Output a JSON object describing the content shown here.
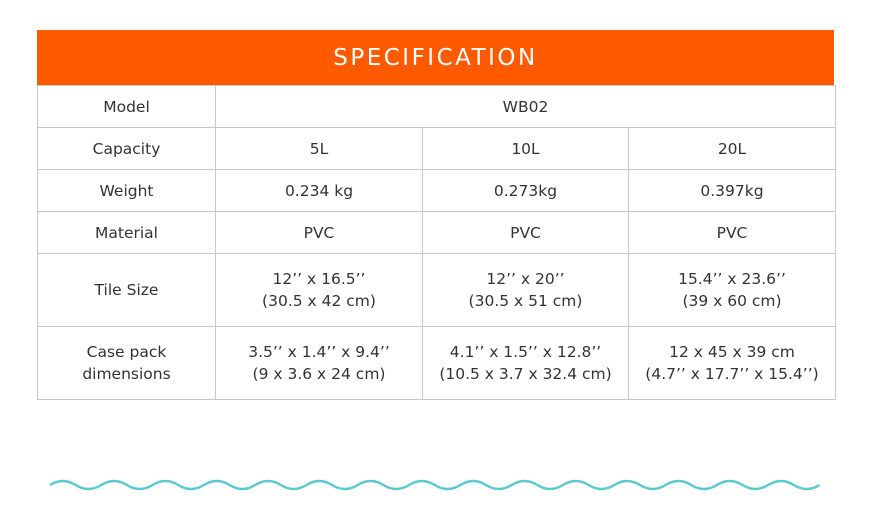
{
  "header": {
    "title": "SPECIFICATION"
  },
  "table": {
    "rows": [
      {
        "label": [
          "Model"
        ],
        "cells": [
          [
            "WB02"
          ]
        ]
      },
      {
        "label": [
          "Capacity"
        ],
        "cells": [
          [
            "5L"
          ],
          [
            "10L"
          ],
          [
            "20L"
          ]
        ]
      },
      {
        "label": [
          "Weight"
        ],
        "cells": [
          [
            "0.234 kg"
          ],
          [
            "0.273kg"
          ],
          [
            "0.397kg"
          ]
        ]
      },
      {
        "label": [
          "Material"
        ],
        "cells": [
          [
            "PVC"
          ],
          [
            "PVC"
          ],
          [
            "PVC"
          ]
        ]
      },
      {
        "label": [
          "Tile Size"
        ],
        "cells": [
          [
            "12’’ x 16.5’’",
            "(30.5 x 42 cm)"
          ],
          [
            "12’’ x 20’’",
            "(30.5 x 51 cm)"
          ],
          [
            "15.4’’ x 23.6’’",
            "(39 x 60 cm)"
          ]
        ]
      },
      {
        "label": [
          "Case pack",
          "dimensions"
        ],
        "cells": [
          [
            "3.5’’ x 1.4’’ x 9.4’’",
            "(9 x 3.6 x 24 cm)"
          ],
          [
            "4.1’’ x 1.5’’ x 12.8’’",
            "(10.5 x 3.7 x 32.4 cm)"
          ],
          [
            "12 x 45 x 39 cm",
            "(4.7’’ x 17.7’’ x 15.4’’)"
          ]
        ]
      }
    ]
  }
}
